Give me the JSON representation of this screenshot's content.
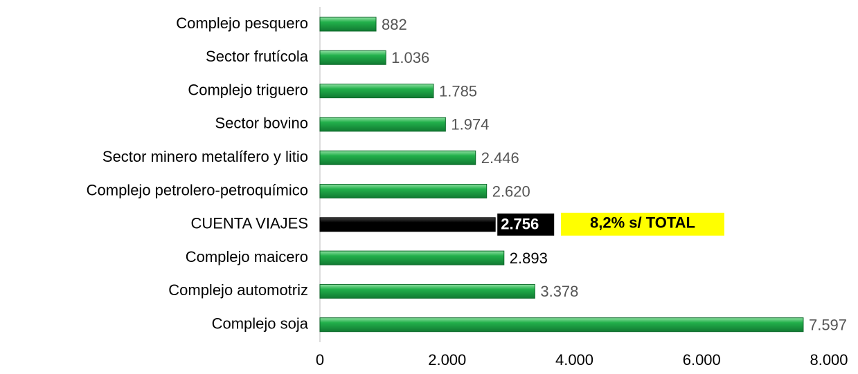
{
  "chart_data": {
    "type": "hbar",
    "categories": [
      "Complejo pesquero",
      "Sector frutícola",
      "Complejo triguero",
      "Sector bovino",
      "Sector minero metalífero y litio",
      "Complejo petrolero-petroquímico",
      "CUENTA VIAJES",
      "Complejo maicero",
      "Complejo automotriz",
      "Complejo soja"
    ],
    "values": [
      882,
      1036,
      1785,
      1974,
      2446,
      2620,
      2756,
      2893,
      3378,
      7597
    ],
    "value_labels": [
      "882",
      "1.036",
      "1.785",
      "1.974",
      "2.446",
      "2.620",
      "2.756",
      "2.893",
      "3.378",
      "7.597"
    ],
    "colors": [
      "#22b04b",
      "#22b04b",
      "#22b04b",
      "#22b04b",
      "#22b04b",
      "#22b04b",
      "#000000",
      "#22b04b",
      "#22b04b",
      "#22b04b"
    ],
    "annotation": "8,2% s/ TOTAL",
    "xlim": [
      0,
      8000
    ],
    "xticks": [
      0,
      {
        "value": 2000,
        "label": "2.000"
      },
      {
        "value": 4000,
        "label": "4.000"
      },
      {
        "value": 6000,
        "label": "6.000"
      },
      {
        "value": 8000,
        "label": "8.000"
      }
    ]
  }
}
